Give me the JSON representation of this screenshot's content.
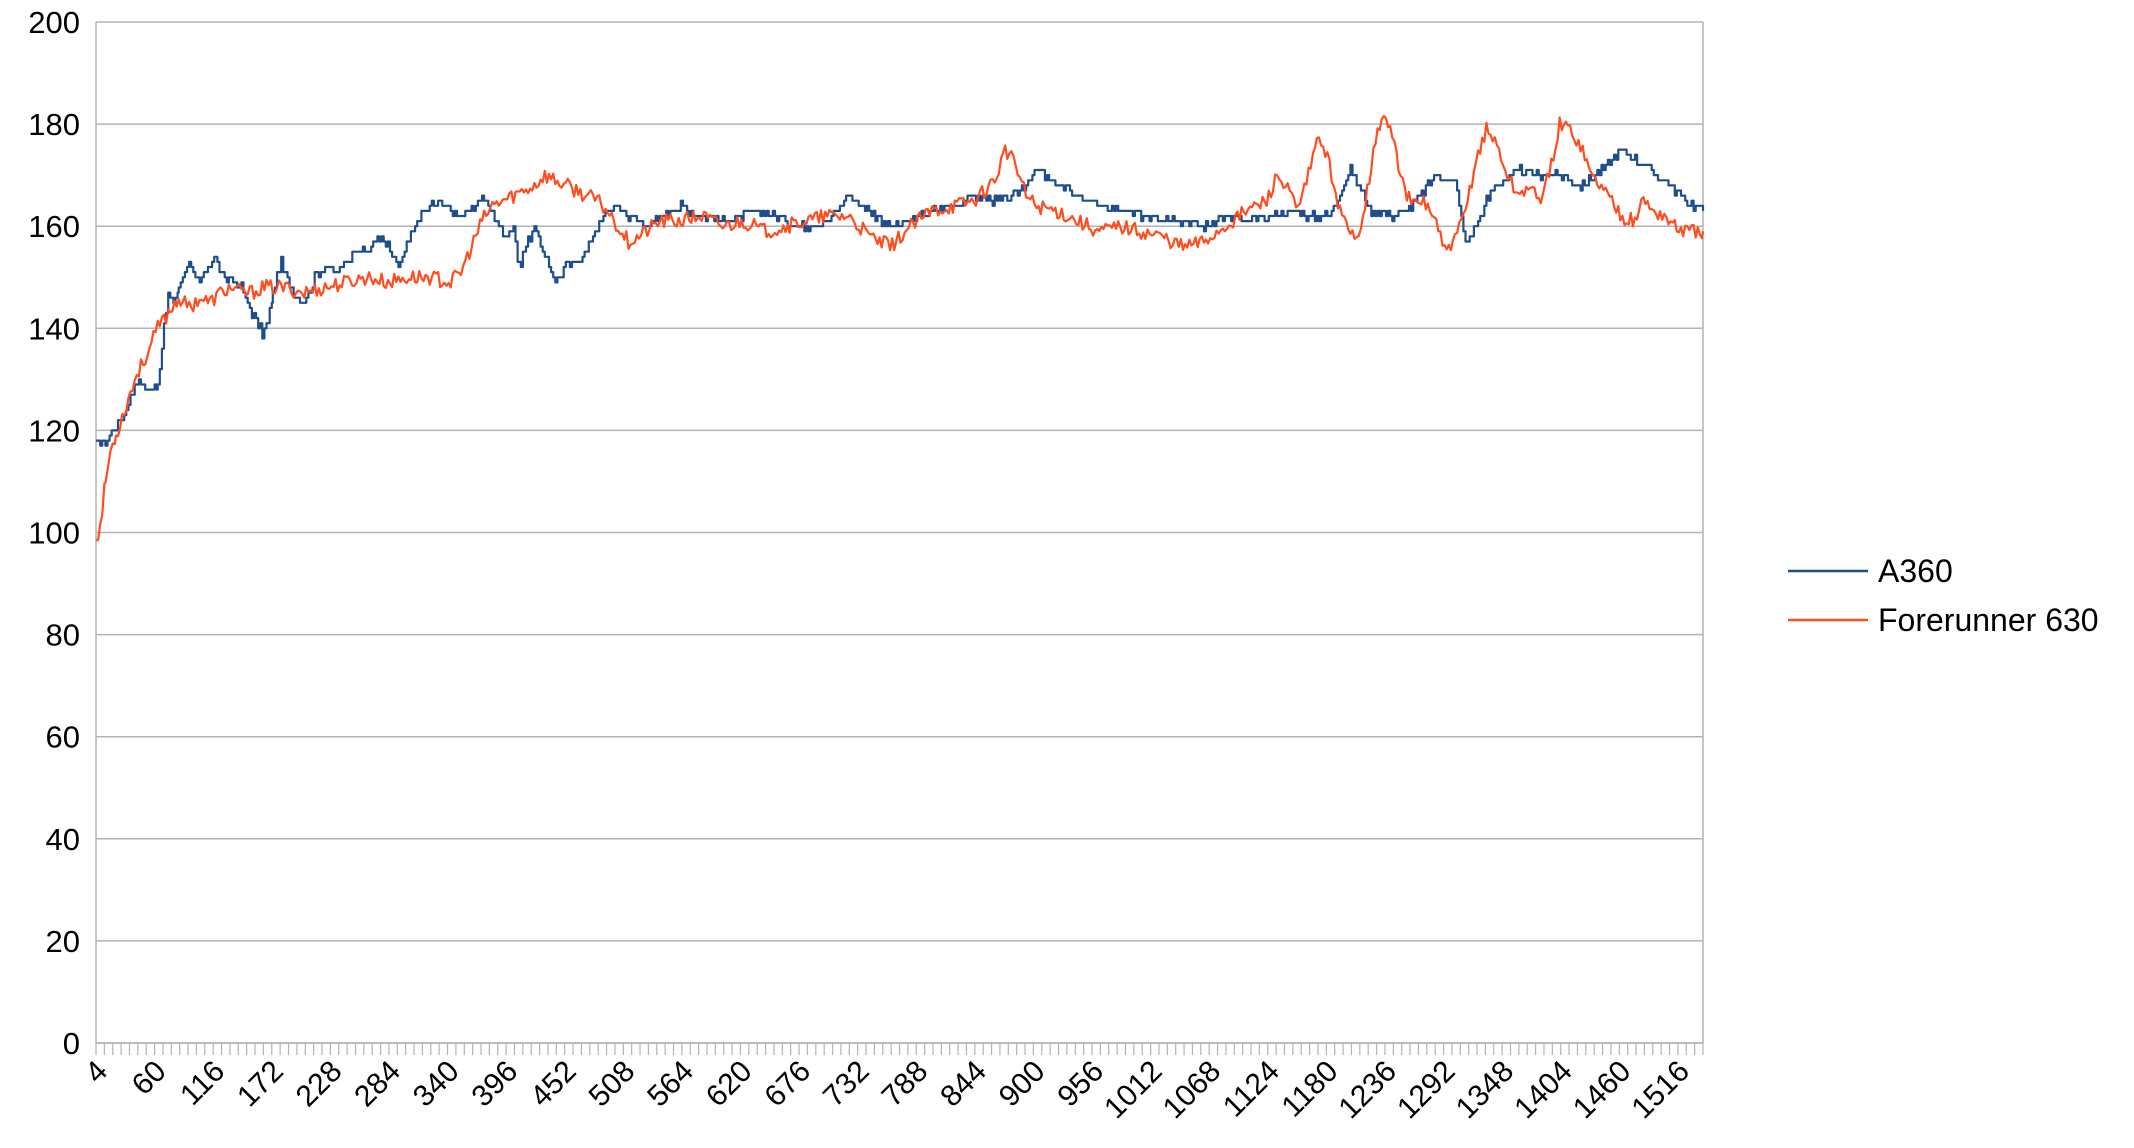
{
  "chart_data": {
    "type": "line",
    "title": "",
    "xlabel": "",
    "ylabel": "",
    "xlim": [
      1,
      1537
    ],
    "ylim": [
      0,
      200
    ],
    "y_ticks": [
      0,
      20,
      40,
      60,
      80,
      100,
      120,
      140,
      160,
      180,
      200
    ],
    "x_tick_labels": [
      "4",
      "60",
      "116",
      "172",
      "228",
      "284",
      "340",
      "396",
      "452",
      "508",
      "564",
      "620",
      "676",
      "732",
      "788",
      "844",
      "900",
      "956",
      "1012",
      "1068",
      "1124",
      "1180",
      "1236",
      "1292",
      "1348",
      "1404",
      "1460",
      "1516"
    ],
    "grid": true,
    "legend_position": "right",
    "series": [
      {
        "name": "A360",
        "color": "#1f4e8c",
        "x": [
          1,
          10,
          20,
          30,
          40,
          50,
          55,
          60,
          70,
          75,
          80,
          90,
          100,
          110,
          115,
          120,
          130,
          140,
          150,
          160,
          165,
          170,
          178,
          180,
          190,
          200,
          210,
          220,
          230,
          240,
          250,
          260,
          270,
          280,
          290,
          300,
          310,
          320,
          330,
          340,
          350,
          360,
          370,
          380,
          390,
          400,
          405,
          410,
          420,
          430,
          440,
          450,
          460,
          470,
          480,
          490,
          500,
          510,
          520,
          530,
          540,
          550,
          560,
          570,
          580,
          590,
          600,
          620,
          640,
          660,
          680,
          700,
          720,
          740,
          760,
          780,
          800,
          820,
          840,
          860,
          880,
          900,
          920,
          940,
          960,
          980,
          1000,
          1020,
          1040,
          1060,
          1080,
          1100,
          1120,
          1140,
          1160,
          1180,
          1200,
          1220,
          1240,
          1260,
          1280,
          1300,
          1310,
          1320,
          1330,
          1340,
          1360,
          1380,
          1400,
          1420,
          1440,
          1460,
          1480,
          1500,
          1520,
          1537
        ],
        "values": [
          117,
          118,
          121,
          124,
          130,
          128,
          128,
          129,
          147,
          145,
          148,
          153,
          149,
          152,
          154,
          151,
          149,
          148,
          143,
          139,
          141,
          147,
          153,
          151,
          147,
          145,
          150,
          152,
          151,
          153,
          156,
          155,
          158,
          156,
          152,
          157,
          162,
          164,
          165,
          163,
          162,
          163,
          166,
          163,
          158,
          160,
          152,
          155,
          160,
          154,
          149,
          152,
          153,
          155,
          160,
          163,
          164,
          162,
          161,
          160,
          162,
          163,
          164,
          163,
          162,
          162,
          161,
          162,
          163,
          161,
          160,
          161,
          166,
          163,
          160,
          161,
          163,
          164,
          166,
          165,
          166,
          171,
          168,
          166,
          164,
          163,
          162,
          162,
          161,
          160,
          162,
          161,
          162,
          163,
          162,
          162,
          171,
          163,
          162,
          164,
          170,
          169,
          157,
          160,
          165,
          168,
          171,
          170,
          170,
          168,
          171,
          175,
          172,
          169,
          165,
          163
        ]
      },
      {
        "name": "Forerunner 630",
        "color": "#ff4d1f",
        "x": [
          1,
          5,
          10,
          15,
          20,
          30,
          40,
          50,
          60,
          70,
          80,
          90,
          100,
          110,
          120,
          130,
          140,
          150,
          160,
          180,
          200,
          220,
          240,
          260,
          280,
          300,
          320,
          340,
          350,
          360,
          370,
          380,
          390,
          400,
          410,
          420,
          430,
          440,
          450,
          460,
          470,
          480,
          490,
          500,
          510,
          520,
          540,
          560,
          580,
          600,
          620,
          640,
          660,
          680,
          700,
          720,
          740,
          760,
          780,
          800,
          820,
          840,
          860,
          870,
          880,
          890,
          900,
          920,
          940,
          960,
          980,
          1000,
          1020,
          1040,
          1060,
          1080,
          1100,
          1120,
          1130,
          1140,
          1150,
          1160,
          1170,
          1180,
          1190,
          1200,
          1210,
          1220,
          1230,
          1240,
          1250,
          1260,
          1270,
          1280,
          1290,
          1300,
          1310,
          1320,
          1330,
          1340,
          1350,
          1360,
          1370,
          1380,
          1390,
          1400,
          1410,
          1420,
          1430,
          1440,
          1450,
          1460,
          1470,
          1480,
          1490,
          1500,
          1510,
          1520,
          1537
        ],
        "values": [
          99,
          101,
          110,
          116,
          119,
          125,
          131,
          135,
          140,
          143,
          146,
          144,
          146,
          145,
          147,
          148,
          147,
          147,
          148,
          148,
          147,
          148,
          149,
          150,
          149,
          150,
          150,
          149,
          151,
          156,
          161,
          164,
          165,
          166,
          167,
          168,
          170,
          169,
          168,
          167,
          166,
          165,
          163,
          160,
          157,
          158,
          161,
          161,
          162,
          160,
          161,
          159,
          160,
          161,
          162,
          162,
          158,
          156,
          160,
          163,
          164,
          165,
          169,
          175,
          172,
          166,
          164,
          163,
          161,
          159,
          160,
          159,
          158,
          156,
          157,
          160,
          163,
          165,
          170,
          167,
          163,
          170,
          178,
          172,
          163,
          158,
          160,
          172,
          182,
          178,
          168,
          164,
          165,
          162,
          155,
          157,
          163,
          173,
          179,
          176,
          170,
          166,
          168,
          165,
          170,
          180,
          179,
          176,
          170,
          168,
          165,
          162,
          161,
          165,
          163,
          162,
          160,
          159,
          159
        ]
      }
    ]
  }
}
